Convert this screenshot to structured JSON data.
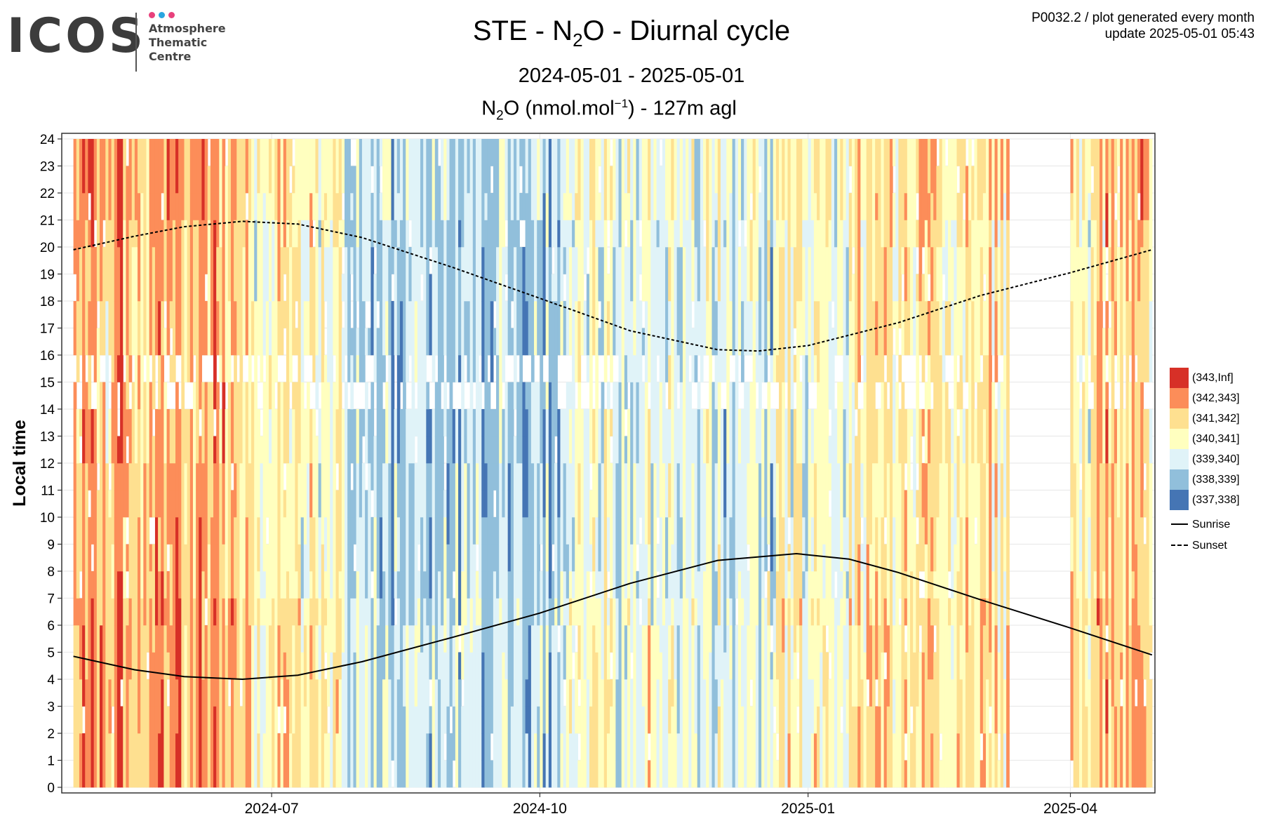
{
  "logo": {
    "word": "ICOS",
    "line1": "Atmosphere",
    "line2": "Thematic",
    "line3": "Centre",
    "dot_colors": [
      "#e8417c",
      "#29a6e0",
      "#e8417c"
    ]
  },
  "header": {
    "title_pre": "STE - N",
    "title_sub": "2",
    "title_post": "O - Diurnal cycle",
    "date_range": "2024-05-01 - 2025-05-01",
    "quantity_pre": "N",
    "quantity_sub": "2",
    "quantity_mid": "O (nmol.mol",
    "quantity_sup": "−1",
    "quantity_post": ") - 127m agl",
    "meta_line1": "P0032.2 / plot generated every month",
    "meta_line2": "update  2025-05-01 05:43"
  },
  "chart_data": {
    "type": "heatmap",
    "x_range": [
      "2024-04-20",
      "2025-04-30"
    ],
    "ylim": [
      0,
      24
    ],
    "ylabel": "Local time",
    "y_ticks": [
      0,
      1,
      2,
      3,
      4,
      5,
      6,
      7,
      8,
      9,
      10,
      11,
      12,
      13,
      14,
      15,
      16,
      17,
      18,
      19,
      20,
      21,
      22,
      23,
      24
    ],
    "x_ticks": [
      {
        "date": "2024-07-01",
        "label": "2024-07"
      },
      {
        "date": "2024-10-01",
        "label": "2024-10"
      },
      {
        "date": "2025-01-01",
        "label": "2025-01"
      },
      {
        "date": "2025-04-01",
        "label": "2025-04"
      }
    ],
    "grid": true,
    "legend_placement": "right",
    "bins": [
      {
        "label": "(343,Inf]",
        "color": "#d73027"
      },
      {
        "label": "(342,343]",
        "color": "#fc8d59"
      },
      {
        "label": "(341,342]",
        "color": "#fee090"
      },
      {
        "label": "(340,341]",
        "color": "#ffffbf"
      },
      {
        "label": "(339,340]",
        "color": "#e0f3f8"
      },
      {
        "label": "(338,339]",
        "color": "#91bfdb"
      },
      {
        "label": "(337,338]",
        "color": "#4575b4"
      }
    ],
    "regimes": [
      {
        "start": "2024-04-24",
        "end": "2024-06-25",
        "bias": 1.1
      },
      {
        "start": "2024-06-25",
        "end": "2024-07-25",
        "bias": 0.3
      },
      {
        "start": "2024-07-25",
        "end": "2024-10-10",
        "bias": -1.05
      },
      {
        "start": "2024-10-10",
        "end": "2024-11-20",
        "bias": -0.15
      },
      {
        "start": "2024-11-20",
        "end": "2024-12-20",
        "bias": -0.55
      },
      {
        "start": "2024-12-20",
        "end": "2025-01-05",
        "bias": 0.2
      },
      {
        "start": "2025-01-05",
        "end": "2025-01-15",
        "bias": -0.35
      },
      {
        "start": "2025-01-15",
        "end": "2025-03-11",
        "bias": 0.45
      },
      {
        "start": "2025-04-01",
        "end": "2025-04-10",
        "bias": 0.1
      },
      {
        "start": "2025-04-10",
        "end": "2025-04-29",
        "bias": 0.9
      }
    ],
    "data_gap": [
      "2025-03-11",
      "2025-04-01"
    ],
    "series": [
      {
        "name": "Sunrise",
        "style": "solid",
        "points": [
          [
            "2024-04-24",
            4.85
          ],
          [
            "2024-05-15",
            4.35
          ],
          [
            "2024-06-01",
            4.1
          ],
          [
            "2024-06-21",
            4.0
          ],
          [
            "2024-07-10",
            4.15
          ],
          [
            "2024-08-01",
            4.65
          ],
          [
            "2024-09-01",
            5.55
          ],
          [
            "2024-10-01",
            6.45
          ],
          [
            "2024-11-01",
            7.55
          ],
          [
            "2024-12-01",
            8.4
          ],
          [
            "2024-12-28",
            8.65
          ],
          [
            "2025-01-15",
            8.45
          ],
          [
            "2025-02-01",
            7.95
          ],
          [
            "2025-03-01",
            6.95
          ],
          [
            "2025-04-01",
            5.9
          ],
          [
            "2025-04-29",
            4.9
          ]
        ]
      },
      {
        "name": "Sunset",
        "style": "dashed",
        "points": [
          [
            "2024-04-24",
            19.9
          ],
          [
            "2024-05-15",
            20.4
          ],
          [
            "2024-06-01",
            20.75
          ],
          [
            "2024-06-21",
            20.95
          ],
          [
            "2024-07-10",
            20.85
          ],
          [
            "2024-08-01",
            20.35
          ],
          [
            "2024-09-01",
            19.25
          ],
          [
            "2024-10-01",
            18.1
          ],
          [
            "2024-11-01",
            16.9
          ],
          [
            "2024-12-01",
            16.2
          ],
          [
            "2024-12-15",
            16.15
          ],
          [
            "2025-01-01",
            16.35
          ],
          [
            "2025-02-01",
            17.2
          ],
          [
            "2025-03-01",
            18.2
          ],
          [
            "2025-04-01",
            19.05
          ],
          [
            "2025-04-29",
            19.9
          ]
        ]
      }
    ]
  }
}
